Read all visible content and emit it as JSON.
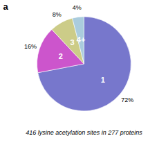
{
  "chart_data": {
    "type": "pie",
    "title": "416 lysine acetylation sites in 277 proteins",
    "annotations": [
      "a"
    ],
    "categories": [
      "1",
      "2",
      "3",
      "4+"
    ],
    "values": [
      72,
      16,
      8,
      4
    ],
    "value_labels": [
      "72%",
      "16%",
      "8%",
      "4%"
    ],
    "colors": [
      "#7777cc",
      "#cc55cc",
      "#cccc88",
      "#aaccdd"
    ],
    "data_labels": true
  }
}
